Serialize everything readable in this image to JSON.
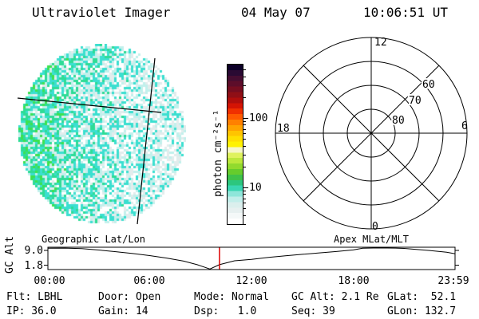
{
  "header": {
    "title": "Ultraviolet Imager",
    "date": "04 May 07",
    "time": "10:06:51 UT"
  },
  "disk": {
    "colors": {
      "bright_green": "#3ce24f",
      "teal_green": "#2edc96",
      "turquoise": "#3bdfd0",
      "light_cyan": "#c2f0ec",
      "pale_gray": "#e2ecec",
      "white": "#ffffff"
    }
  },
  "colorbar": {
    "label": "photon cm⁻²s⁻¹",
    "major_ticks": [
      {
        "value": 100,
        "label": "100"
      },
      {
        "value": 10,
        "label": "10"
      }
    ],
    "minor_tick_values": [
      500,
      400,
      300,
      200,
      90,
      80,
      70,
      60,
      50,
      40,
      30,
      20,
      9,
      8,
      7,
      6,
      5,
      4,
      3
    ],
    "colors": [
      "#0c0028",
      "#2a0a33",
      "#450d31",
      "#5d0d2a",
      "#760d20",
      "#900f16",
      "#b00e0c",
      "#d41404",
      "#f03000",
      "#ff5a00",
      "#ff8000",
      "#ffa300",
      "#ffc400",
      "#ffdf00",
      "#fff200",
      "#f6f6c8",
      "#dff25e",
      "#bce83c",
      "#92da2e",
      "#66cc2c",
      "#3fc24a",
      "#2cc67e",
      "#39d6b2",
      "#8fe6da",
      "#c2eeea",
      "#dbefed",
      "#e7f0f0",
      "#f4f8f8",
      "#ffffff"
    ]
  },
  "polar": {
    "top_label": "12",
    "left_label": "18",
    "right_label": "6",
    "bottom_label": "0",
    "ring_labels": [
      "60",
      "70",
      "80"
    ]
  },
  "strip": {
    "title_left": "Geographic Lat/Lon",
    "title_right": "Apex MLat/MLT",
    "ylabel": "GC Alt",
    "ytick_labels": [
      "9.0",
      "1.8"
    ],
    "xtick_labels": [
      "00:00",
      "06:00",
      "12:00",
      "18:00",
      "23:59"
    ]
  },
  "status": {
    "rows": [
      [
        "Flt: LBHL",
        "Door: Open",
        "Mode: Normal",
        "GC Alt: 2.1 Re",
        "GLat:  52.1"
      ],
      [
        "IP: 36.0",
        "Gain: 14",
        "Dsp:   1.0",
        "Seq: 39",
        "GLon: 132.7"
      ]
    ]
  },
  "chart_data": [
    {
      "type": "heatmap",
      "name": "uv-disk-image",
      "title": "Ultraviolet Imager disk image",
      "units": "photon cm-2 s-1",
      "scale": "log",
      "colorbar_ticks": [
        100,
        10
      ],
      "appearance": "randomly speckled circular disk; intensity ~10-30 (green/teal) toward left limb grading to ~1-5 (pale cyan/white) toward right limb",
      "overlay_lines": [
        [
          22,
          123,
          202,
          141
        ],
        [
          194,
          73,
          172,
          281
        ]
      ]
    },
    {
      "type": "polar-grid",
      "name": "apex-mlat-mlt-grid",
      "mlt_ticks": {
        "top": "12",
        "right": "6",
        "bottom": "0",
        "left": "18"
      },
      "mlat_rings": [
        80,
        70,
        60,
        50
      ],
      "ring_labels": [
        60,
        70,
        80
      ],
      "spokes_deg": [
        0,
        45,
        90,
        135,
        180,
        225,
        270,
        315
      ]
    },
    {
      "type": "line",
      "name": "gc-alt-vs-time",
      "ylabel": "GC Alt",
      "yscale": "log",
      "yticks": [
        9.0,
        1.8
      ],
      "xticks": [
        "00:00",
        "06:00",
        "12:00",
        "18:00",
        "23:59"
      ],
      "x_hours": [
        0,
        1,
        2,
        3,
        4,
        5,
        6,
        7,
        8,
        8.8,
        9.55,
        10.11,
        11,
        12,
        13,
        14,
        15,
        16,
        17,
        18,
        18.55,
        19.5,
        20.5,
        21,
        21.5,
        22.5,
        23.5,
        23.98
      ],
      "y_re": [
        11.5,
        11.6,
        10.9,
        9.4,
        7.8,
        6.4,
        5.1,
        3.9,
        2.8,
        1.9,
        1.1,
        1.9,
        2.9,
        3.4,
        4.2,
        5.0,
        5.9,
        6.9,
        8.0,
        9.5,
        11.5,
        11.8,
        11.6,
        11.2,
        10.3,
        8.9,
        7.4,
        6.3
      ],
      "marker_hours": 10.114,
      "marker_color": "#dd0000"
    }
  ]
}
